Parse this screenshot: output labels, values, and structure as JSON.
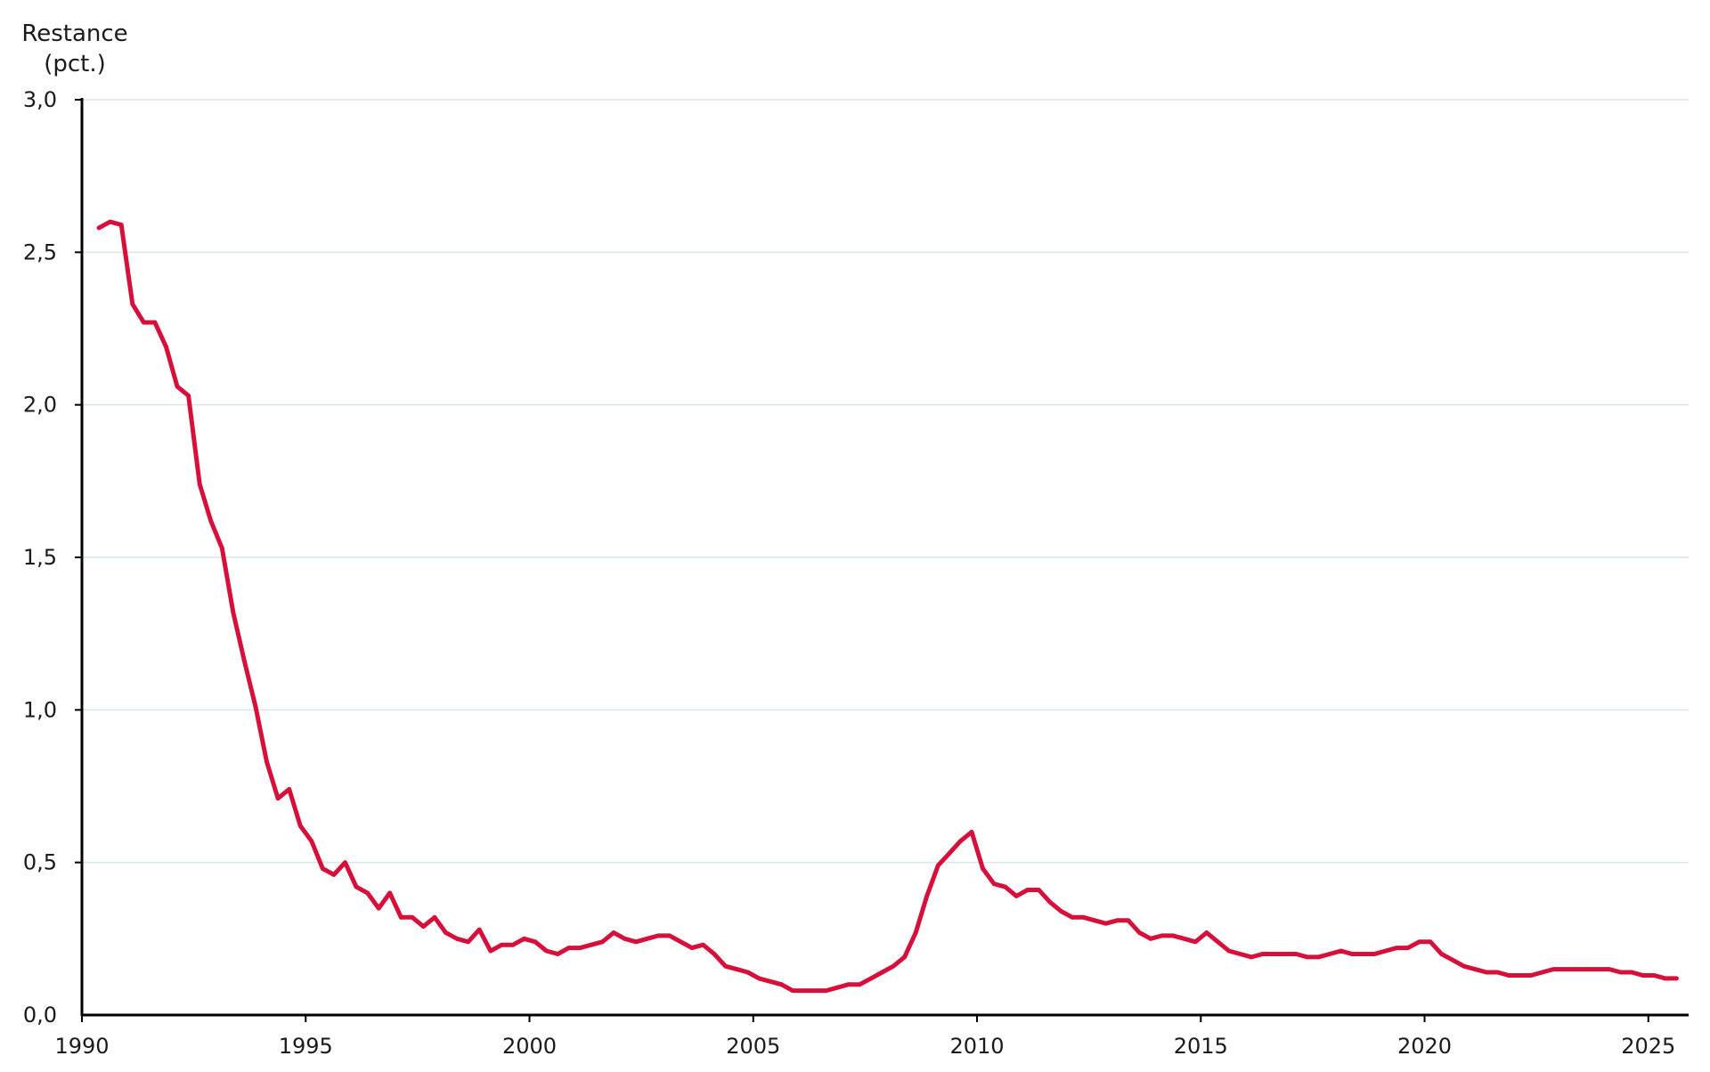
{
  "chart_data": {
    "type": "line",
    "title": "",
    "ylabel_line1": "Restance",
    "ylabel_line2": "(pct.)",
    "xlabel": "",
    "xlim": [
      1990,
      2025.9
    ],
    "ylim": [
      0,
      3
    ],
    "yticks": [
      {
        "value": 0,
        "label": "0,0"
      },
      {
        "value": 0.5,
        "label": "0,5"
      },
      {
        "value": 1.0,
        "label": "1,0"
      },
      {
        "value": 1.5,
        "label": "1,5"
      },
      {
        "value": 2.0,
        "label": "2,0"
      },
      {
        "value": 2.5,
        "label": "2,5"
      },
      {
        "value": 3.0,
        "label": "3,0"
      }
    ],
    "xticks": [
      {
        "value": 1990,
        "label": "1990"
      },
      {
        "value": 1995,
        "label": "1995"
      },
      {
        "value": 2000,
        "label": "2000"
      },
      {
        "value": 2005,
        "label": "2005"
      },
      {
        "value": 2010,
        "label": "2010"
      },
      {
        "value": 2015,
        "label": "2015"
      },
      {
        "value": 2020,
        "label": "2020"
      },
      {
        "value": 2025,
        "label": "2025"
      }
    ],
    "grid": true,
    "color": "#d7103b",
    "series": [
      {
        "points": [
          [
            1990.38,
            2.58
          ],
          [
            1990.63,
            2.6
          ],
          [
            1990.88,
            2.59
          ],
          [
            1991.13,
            2.33
          ],
          [
            1991.38,
            2.27
          ],
          [
            1991.63,
            2.27
          ],
          [
            1991.88,
            2.19
          ],
          [
            1992.13,
            2.06
          ],
          [
            1992.38,
            2.03
          ],
          [
            1992.63,
            1.74
          ],
          [
            1992.88,
            1.62
          ],
          [
            1993.13,
            1.53
          ],
          [
            1993.38,
            1.32
          ],
          [
            1993.63,
            1.16
          ],
          [
            1993.88,
            1.01
          ],
          [
            1994.13,
            0.83
          ],
          [
            1994.38,
            0.71
          ],
          [
            1994.63,
            0.74
          ],
          [
            1994.88,
            0.62
          ],
          [
            1995.13,
            0.57
          ],
          [
            1995.38,
            0.48
          ],
          [
            1995.63,
            0.46
          ],
          [
            1995.88,
            0.5
          ],
          [
            1996.13,
            0.42
          ],
          [
            1996.38,
            0.4
          ],
          [
            1996.63,
            0.35
          ],
          [
            1996.88,
            0.4
          ],
          [
            1997.13,
            0.32
          ],
          [
            1997.38,
            0.32
          ],
          [
            1997.63,
            0.29
          ],
          [
            1997.88,
            0.32
          ],
          [
            1998.13,
            0.27
          ],
          [
            1998.38,
            0.25
          ],
          [
            1998.63,
            0.24
          ],
          [
            1998.88,
            0.28
          ],
          [
            1999.13,
            0.21
          ],
          [
            1999.38,
            0.23
          ],
          [
            1999.63,
            0.23
          ],
          [
            1999.88,
            0.25
          ],
          [
            2000.13,
            0.24
          ],
          [
            2000.38,
            0.21
          ],
          [
            2000.63,
            0.2
          ],
          [
            2000.88,
            0.22
          ],
          [
            2001.13,
            0.22
          ],
          [
            2001.38,
            0.23
          ],
          [
            2001.63,
            0.24
          ],
          [
            2001.88,
            0.27
          ],
          [
            2002.13,
            0.25
          ],
          [
            2002.38,
            0.24
          ],
          [
            2002.63,
            0.25
          ],
          [
            2002.88,
            0.26
          ],
          [
            2003.13,
            0.26
          ],
          [
            2003.38,
            0.24
          ],
          [
            2003.63,
            0.22
          ],
          [
            2003.88,
            0.23
          ],
          [
            2004.13,
            0.2
          ],
          [
            2004.38,
            0.16
          ],
          [
            2004.63,
            0.15
          ],
          [
            2004.88,
            0.14
          ],
          [
            2005.13,
            0.12
          ],
          [
            2005.38,
            0.11
          ],
          [
            2005.63,
            0.1
          ],
          [
            2005.88,
            0.08
          ],
          [
            2006.13,
            0.08
          ],
          [
            2006.38,
            0.08
          ],
          [
            2006.63,
            0.08
          ],
          [
            2006.88,
            0.09
          ],
          [
            2007.13,
            0.1
          ],
          [
            2007.38,
            0.1
          ],
          [
            2007.63,
            0.12
          ],
          [
            2007.88,
            0.14
          ],
          [
            2008.13,
            0.16
          ],
          [
            2008.38,
            0.19
          ],
          [
            2008.63,
            0.27
          ],
          [
            2008.88,
            0.39
          ],
          [
            2009.13,
            0.49
          ],
          [
            2009.38,
            0.53
          ],
          [
            2009.63,
            0.57
          ],
          [
            2009.88,
            0.6
          ],
          [
            2010.13,
            0.48
          ],
          [
            2010.38,
            0.43
          ],
          [
            2010.63,
            0.42
          ],
          [
            2010.88,
            0.39
          ],
          [
            2011.13,
            0.41
          ],
          [
            2011.38,
            0.41
          ],
          [
            2011.63,
            0.37
          ],
          [
            2011.88,
            0.34
          ],
          [
            2012.13,
            0.32
          ],
          [
            2012.38,
            0.32
          ],
          [
            2012.63,
            0.31
          ],
          [
            2012.88,
            0.3
          ],
          [
            2013.13,
            0.31
          ],
          [
            2013.38,
            0.31
          ],
          [
            2013.63,
            0.27
          ],
          [
            2013.88,
            0.25
          ],
          [
            2014.13,
            0.26
          ],
          [
            2014.38,
            0.26
          ],
          [
            2014.63,
            0.25
          ],
          [
            2014.88,
            0.24
          ],
          [
            2015.13,
            0.27
          ],
          [
            2015.38,
            0.24
          ],
          [
            2015.63,
            0.21
          ],
          [
            2015.88,
            0.2
          ],
          [
            2016.13,
            0.19
          ],
          [
            2016.38,
            0.2
          ],
          [
            2016.63,
            0.2
          ],
          [
            2016.88,
            0.2
          ],
          [
            2017.13,
            0.2
          ],
          [
            2017.38,
            0.19
          ],
          [
            2017.63,
            0.19
          ],
          [
            2017.88,
            0.2
          ],
          [
            2018.13,
            0.21
          ],
          [
            2018.38,
            0.2
          ],
          [
            2018.63,
            0.2
          ],
          [
            2018.88,
            0.2
          ],
          [
            2019.13,
            0.21
          ],
          [
            2019.38,
            0.22
          ],
          [
            2019.63,
            0.22
          ],
          [
            2019.88,
            0.24
          ],
          [
            2020.13,
            0.24
          ],
          [
            2020.38,
            0.2
          ],
          [
            2020.63,
            0.18
          ],
          [
            2020.88,
            0.16
          ],
          [
            2021.13,
            0.15
          ],
          [
            2021.38,
            0.14
          ],
          [
            2021.63,
            0.14
          ],
          [
            2021.88,
            0.13
          ],
          [
            2022.13,
            0.13
          ],
          [
            2022.38,
            0.13
          ],
          [
            2022.63,
            0.14
          ],
          [
            2022.88,
            0.15
          ],
          [
            2023.13,
            0.15
          ],
          [
            2023.38,
            0.15
          ],
          [
            2023.63,
            0.15
          ],
          [
            2023.88,
            0.15
          ],
          [
            2024.13,
            0.15
          ],
          [
            2024.38,
            0.14
          ],
          [
            2024.63,
            0.14
          ],
          [
            2024.88,
            0.13
          ],
          [
            2025.13,
            0.13
          ],
          [
            2025.38,
            0.12
          ],
          [
            2025.63,
            0.12
          ]
        ]
      }
    ]
  }
}
